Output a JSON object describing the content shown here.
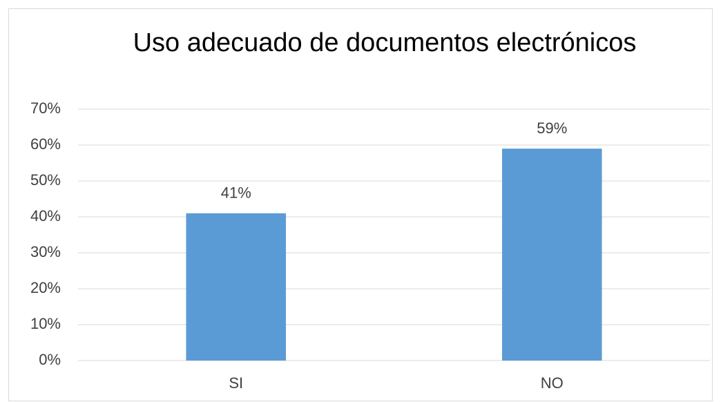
{
  "chart_data": {
    "type": "bar",
    "title": "Uso adecuado de documentos electrónicos",
    "categories": [
      "SI",
      "NO"
    ],
    "values": [
      41,
      59
    ],
    "value_labels": [
      "41%",
      "59%"
    ],
    "color": "#5b9bd5",
    "ylim": [
      0,
      70
    ],
    "yticks": [
      {
        "value": 0,
        "label": "0%"
      },
      {
        "value": 10,
        "label": "10%"
      },
      {
        "value": 20,
        "label": "20%"
      },
      {
        "value": 30,
        "label": "30%"
      },
      {
        "value": 40,
        "label": "40%"
      },
      {
        "value": 50,
        "label": "50%"
      },
      {
        "value": 60,
        "label": "60%"
      },
      {
        "value": 70,
        "label": "70%"
      }
    ],
    "grid": true
  }
}
